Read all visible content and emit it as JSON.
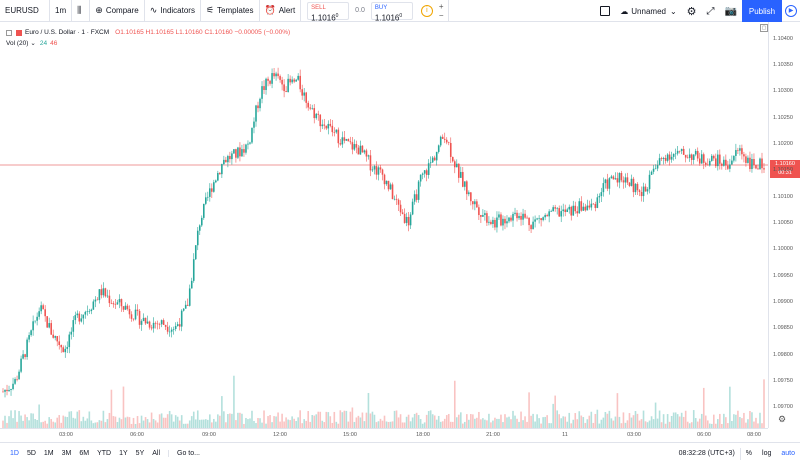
{
  "toolbar": {
    "symbol": "EURUSD",
    "interval": "1m",
    "compare_label": "Compare",
    "indicators_label": "Indicators",
    "templates_label": "Templates",
    "alert_label": "Alert",
    "sell_label": "SELL",
    "sell_price": "1.1016",
    "sell_sup": "0",
    "spread": "0.0",
    "buy_label": "BUY",
    "buy_price": "1.1016",
    "buy_sup": "0",
    "plus": "+",
    "minus": "−",
    "layout_name": "Unnamed",
    "publish_label": "Publish"
  },
  "legend": {
    "title": "Euro / U.S. Dollar · 1 · FXCM",
    "open": "O1.10165",
    "high": "H1.10165",
    "low": "L1.10160",
    "close": "C1.10160",
    "change": "−0.00005 (−0.00%)",
    "vol_label": "Vol (20)",
    "vol_a": "24",
    "vol_b": "46"
  },
  "price_axis": {
    "labels": [
      "1.10400",
      "1.10350",
      "1.10300",
      "1.10250",
      "1.10200",
      "1.10150",
      "1.10100",
      "1.10050",
      "1.10000",
      "1.09950",
      "1.09900",
      "1.09850",
      "1.09800",
      "1.09750",
      "1.09700"
    ],
    "current_price": "1.10160",
    "countdown": "00:31"
  },
  "time_axis": {
    "labels": [
      "03:00",
      "06:00",
      "09:00",
      "12:00",
      "15:00",
      "18:00",
      "21:00",
      "11",
      "03:00",
      "06:00",
      "08:00"
    ]
  },
  "bottom": {
    "ranges": [
      "1D",
      "5D",
      "1M",
      "3M",
      "6M",
      "YTD",
      "1Y",
      "5Y",
      "All"
    ],
    "goto_label": "Go to...",
    "clock": "08:32:28 (UTC+3)",
    "percent": "%",
    "log": "log",
    "auto": "auto"
  },
  "colors": {
    "up": "#26a69a",
    "down": "#ef5350",
    "accent": "#2962ff"
  },
  "chart_data": {
    "type": "candlestick",
    "x": [
      "01:30",
      "02:00",
      "02:30",
      "03:00",
      "03:30",
      "04:00",
      "04:30",
      "05:00",
      "05:30",
      "06:00",
      "06:30",
      "07:00",
      "07:30",
      "08:00",
      "08:30",
      "09:00",
      "09:30",
      "10:00",
      "10:30",
      "11:00",
      "11:30",
      "12:00",
      "12:30",
      "13:00",
      "13:30",
      "14:00",
      "14:30",
      "15:00",
      "15:30",
      "16:00",
      "16:30",
      "17:00",
      "17:30",
      "18:00",
      "18:30",
      "19:00",
      "19:30",
      "20:00",
      "20:30",
      "21:00",
      "21:30",
      "22:00",
      "22:30",
      "23:00",
      "23:30",
      "00:00",
      "00:30",
      "01:00",
      "01:30",
      "02:00",
      "02:30",
      "03:00",
      "03:30",
      "04:00",
      "04:30",
      "05:00",
      "05:30",
      "06:00",
      "06:30",
      "07:00",
      "07:30",
      "08:00",
      "08:30"
    ],
    "close": [
      1.0973,
      1.0975,
      1.0982,
      1.0989,
      1.0984,
      1.0981,
      1.0987,
      1.0989,
      1.0992,
      1.099,
      1.0989,
      1.0987,
      1.0986,
      1.0986,
      1.0985,
      1.0989,
      1.1005,
      1.1012,
      1.1017,
      1.1018,
      1.102,
      1.103,
      1.1033,
      1.1031,
      1.1032,
      1.1027,
      1.1024,
      1.1022,
      1.102,
      1.1019,
      1.1016,
      1.1014,
      1.1009,
      1.1005,
      1.1013,
      1.1017,
      1.1022,
      1.1015,
      1.101,
      1.1007,
      1.1005,
      1.1006,
      1.1007,
      1.1005,
      1.1006,
      1.1007,
      1.1007,
      1.1008,
      1.1008,
      1.1012,
      1.1014,
      1.1013,
      1.101,
      1.1015,
      1.1018,
      1.1018,
      1.1018,
      1.1017,
      1.1017,
      1.1016,
      1.1019,
      1.1016,
      1.1016
    ],
    "ylim": [
      1.0968,
      1.1042
    ]
  }
}
